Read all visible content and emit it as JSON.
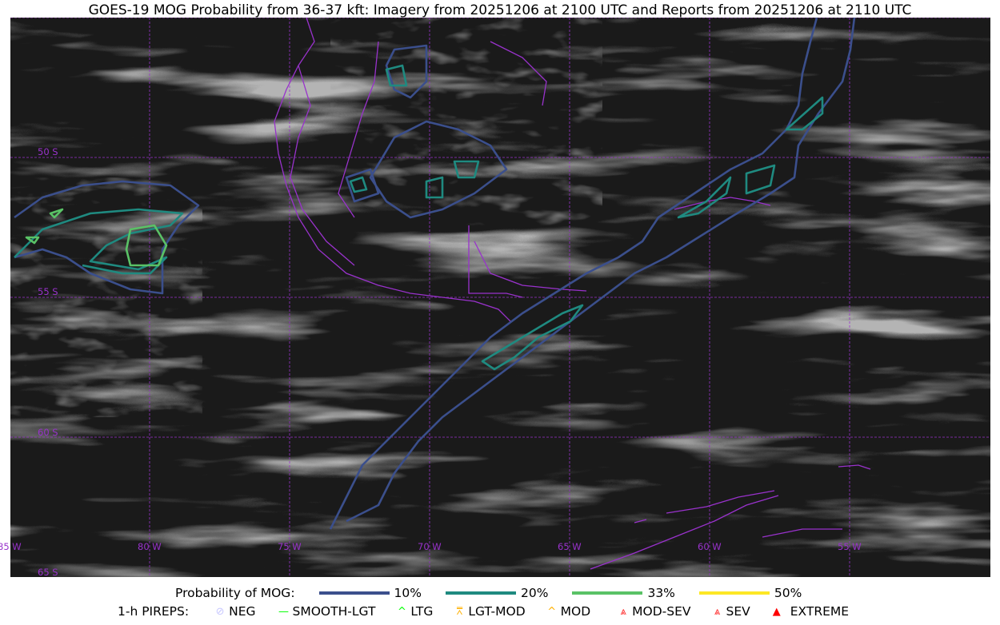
{
  "title": "GOES-19 MOG Probability from 36-37 kft: Imagery from 20251206 at 2100 UTC and Reports from 20251206 at 2110 UTC",
  "map": {
    "latitude_labels": [
      "50 S",
      "55 S",
      "60 S",
      "65 S"
    ],
    "longitude_labels": [
      "85 W",
      "80 W",
      "75 W",
      "70 W",
      "65 W",
      "60 W",
      "55 W"
    ],
    "gridline_color": "#9932cc",
    "coastline_color": "#9932cc"
  },
  "legend": {
    "probability_label": "Probability of MOG:",
    "probability_levels": [
      {
        "label": "10%",
        "color": "#3b4f8c"
      },
      {
        "label": "20%",
        "color": "#1f8a80"
      },
      {
        "label": "33%",
        "color": "#5ac266"
      },
      {
        "label": "50%",
        "color": "#fde725"
      }
    ],
    "pireps_label": "1-h PIREPS:",
    "pireps": [
      {
        "label": "NEG",
        "icon": "neg-icon",
        "color": "#c8c8ff"
      },
      {
        "label": "SMOOTH-LGT",
        "icon": "line-icon",
        "color": "#00ff00"
      },
      {
        "label": "LTG",
        "icon": "caret-icon",
        "color": "#00ff00"
      },
      {
        "label": "LGT-MOD",
        "icon": "caret-bar-icon",
        "color": "#ffb000"
      },
      {
        "label": "MOD",
        "icon": "caret-icon",
        "color": "#ffb000"
      },
      {
        "label": "MOD-SEV",
        "icon": "double-caret-bar-icon",
        "color": "#ff2020"
      },
      {
        "label": "SEV",
        "icon": "double-caret-icon",
        "color": "#ff2020"
      },
      {
        "label": "EXTREME",
        "icon": "filled-triangle-icon",
        "color": "#ff0000"
      }
    ]
  }
}
